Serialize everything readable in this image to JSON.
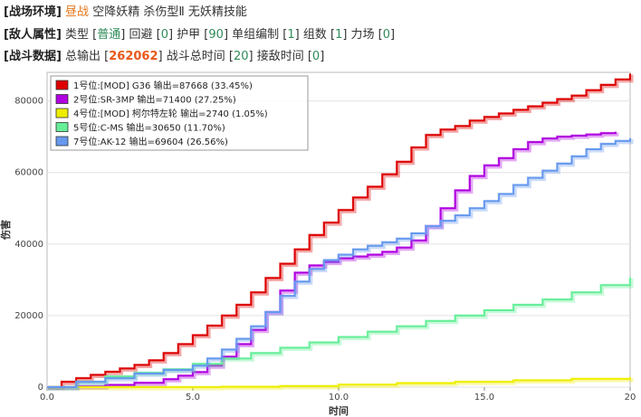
{
  "env": {
    "tag": "[战场环境]",
    "time": "昼战",
    "fairy": "空降妖精 杀伤型Ⅱ 无妖精技能"
  },
  "enemy": {
    "tag": "[敌人属性]",
    "type_label": "类型 [",
    "type_value": "普通",
    "evasion_label": "] 回避 [",
    "evasion_value": "0",
    "armor_label": "] 护甲 [",
    "armor_value": "90",
    "unit_label": "] 单组编制 [",
    "unit_value": "1",
    "groups_label": "] 组数 [",
    "groups_value": "1",
    "field_label": "] 力场 [",
    "field_value": "0",
    "close": "]"
  },
  "battle": {
    "tag": "[战斗数据]",
    "total_label": "总输出 [",
    "total_value": "262062",
    "time_label": "] 战斗总时间 [",
    "time_value": "20",
    "engage_label": "] 接敌时间 [",
    "engage_value": "0",
    "close": "]"
  },
  "chart_data": {
    "type": "line",
    "xlabel": "时间",
    "ylabel": "伤害",
    "xlim": [
      0,
      20
    ],
    "ylim": [
      0,
      88000
    ],
    "xticks": [
      "0.0",
      "5.0",
      "10.0",
      "15.0",
      "20"
    ],
    "xtick_values": [
      0,
      5,
      10,
      15,
      20
    ],
    "yticks": [
      "0",
      "20000",
      "40000",
      "60000",
      "80000"
    ],
    "ytick_values": [
      0,
      20000,
      40000,
      60000,
      80000
    ],
    "grid": true,
    "legend_position": "top-left",
    "series": [
      {
        "name": "1号位:[MOD] G36  输出=87668 (33.45%)",
        "color": "#dd0000",
        "points": [
          [
            0,
            0
          ],
          [
            0.5,
            1500
          ],
          [
            1,
            2500
          ],
          [
            1.5,
            3400
          ],
          [
            2,
            4300
          ],
          [
            2.5,
            5200
          ],
          [
            3,
            6200
          ],
          [
            3.5,
            7500
          ],
          [
            4,
            9500
          ],
          [
            4.5,
            12000
          ],
          [
            5,
            14500
          ],
          [
            5.5,
            17200
          ],
          [
            6,
            20000
          ],
          [
            6.5,
            23000
          ],
          [
            7,
            26500
          ],
          [
            7.5,
            30500
          ],
          [
            8,
            34500
          ],
          [
            8.5,
            38500
          ],
          [
            9,
            42500
          ],
          [
            9.5,
            46000
          ],
          [
            10,
            49500
          ],
          [
            10.5,
            53000
          ],
          [
            11,
            56000
          ],
          [
            11.5,
            59500
          ],
          [
            12,
            63000
          ],
          [
            12.5,
            67000
          ],
          [
            13,
            70500
          ],
          [
            13.5,
            72000
          ],
          [
            14,
            73000
          ],
          [
            14.5,
            74500
          ],
          [
            15,
            75500
          ],
          [
            15.5,
            76500
          ],
          [
            16,
            77500
          ],
          [
            16.5,
            78500
          ],
          [
            17,
            79500
          ],
          [
            17.5,
            80500
          ],
          [
            18,
            81500
          ],
          [
            18.5,
            83000
          ],
          [
            19,
            84500
          ],
          [
            19.5,
            86000
          ],
          [
            20,
            87668
          ]
        ]
      },
      {
        "name": "2号位:SR-3MP  输出=71400 (27.25%)",
        "color": "#b000e0",
        "points": [
          [
            0,
            0
          ],
          [
            1,
            200
          ],
          [
            2,
            600
          ],
          [
            3,
            1200
          ],
          [
            4,
            2200
          ],
          [
            4.5,
            3200
          ],
          [
            5,
            4200
          ],
          [
            5.5,
            6000
          ],
          [
            6,
            8500
          ],
          [
            6.5,
            12000
          ],
          [
            7,
            16000
          ],
          [
            7.5,
            21000
          ],
          [
            8,
            27000
          ],
          [
            8.5,
            32000
          ],
          [
            9,
            34000
          ],
          [
            9.5,
            35000
          ],
          [
            10,
            36000
          ],
          [
            10.5,
            36500
          ],
          [
            11,
            37000
          ],
          [
            11.5,
            37800
          ],
          [
            12,
            39000
          ],
          [
            12.5,
            41000
          ],
          [
            13,
            45000
          ],
          [
            13.5,
            50000
          ],
          [
            14,
            55000
          ],
          [
            14.5,
            59000
          ],
          [
            15,
            62000
          ],
          [
            15.5,
            64000
          ],
          [
            16,
            66500
          ],
          [
            16.5,
            68500
          ],
          [
            17,
            69500
          ],
          [
            17.5,
            70000
          ],
          [
            18,
            70300
          ],
          [
            18.5,
            70600
          ],
          [
            19,
            71000
          ],
          [
            19.5,
            71400
          ]
        ]
      },
      {
        "name": "4号位:[MOD] 柯尔特左轮  输出=2740 (1.05%)",
        "color": "#eeee00",
        "points": [
          [
            0,
            0
          ],
          [
            5,
            0
          ],
          [
            6,
            100
          ],
          [
            8,
            300
          ],
          [
            10,
            700
          ],
          [
            12,
            1100
          ],
          [
            14,
            1500
          ],
          [
            16,
            1900
          ],
          [
            18,
            2300
          ],
          [
            20,
            2740
          ]
        ]
      },
      {
        "name": "5号位:C-MS  输出=30650 (11.70%)",
        "color": "#66ee99",
        "points": [
          [
            0,
            0
          ],
          [
            1,
            1500
          ],
          [
            2,
            3000
          ],
          [
            3,
            4000
          ],
          [
            4,
            5000
          ],
          [
            5,
            6500
          ],
          [
            6,
            8000
          ],
          [
            7,
            9500
          ],
          [
            8,
            11000
          ],
          [
            9,
            12500
          ],
          [
            10,
            14000
          ],
          [
            11,
            15500
          ],
          [
            12,
            17000
          ],
          [
            13,
            18500
          ],
          [
            14,
            20000
          ],
          [
            15,
            21500
          ],
          [
            16,
            23000
          ],
          [
            17,
            24500
          ],
          [
            18,
            26500
          ],
          [
            19,
            28500
          ],
          [
            20,
            30650
          ]
        ]
      },
      {
        "name": "7号位:AK-12  输出=69604 (26.56%)",
        "color": "#6699ee",
        "points": [
          [
            0,
            0
          ],
          [
            1,
            1500
          ],
          [
            2,
            2500
          ],
          [
            3,
            3800
          ],
          [
            4,
            4800
          ],
          [
            5,
            6000
          ],
          [
            5.5,
            8000
          ],
          [
            6,
            10500
          ],
          [
            6.5,
            13500
          ],
          [
            7,
            17000
          ],
          [
            7.5,
            21000
          ],
          [
            8,
            25500
          ],
          [
            8.5,
            29500
          ],
          [
            9,
            33000
          ],
          [
            9.5,
            35500
          ],
          [
            10,
            37000
          ],
          [
            10.5,
            38500
          ],
          [
            11,
            39500
          ],
          [
            11.5,
            40500
          ],
          [
            12,
            41500
          ],
          [
            12.5,
            43000
          ],
          [
            13,
            45000
          ],
          [
            13.5,
            46500
          ],
          [
            14,
            48000
          ],
          [
            14.5,
            50000
          ],
          [
            15,
            52000
          ],
          [
            15.5,
            54000
          ],
          [
            16,
            56500
          ],
          [
            16.5,
            58500
          ],
          [
            17,
            60500
          ],
          [
            17.5,
            62500
          ],
          [
            18,
            64500
          ],
          [
            18.5,
            66500
          ],
          [
            19,
            68000
          ],
          [
            19.5,
            68800
          ],
          [
            20,
            69604
          ]
        ]
      }
    ]
  }
}
